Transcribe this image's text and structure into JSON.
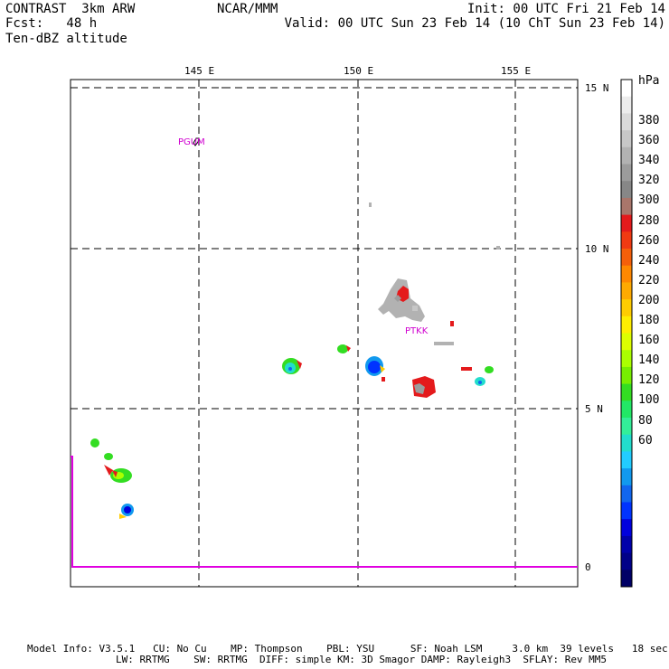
{
  "header": {
    "left_line1": "CONTRAST  3km ARW",
    "left_line2": "Fcst:   48 h",
    "left_line3": "Ten-dBZ altitude",
    "center": "NCAR/MMM",
    "right_line1": "Init: 00 UTC Fri 21 Feb 14",
    "right_line2": "Valid: 00 UTC Sun 23 Feb 14 (10 ChT Sun 23 Feb 14)"
  },
  "map": {
    "lon_labels": [
      "145 E",
      "150 E",
      "155 E"
    ],
    "lat_labels": [
      "15 N",
      "10 N",
      "5 N",
      "0"
    ],
    "stations": [
      {
        "id": "PGUM",
        "label": "PGUM"
      },
      {
        "id": "PTKK",
        "label": "PTKK"
      }
    ]
  },
  "colorbar": {
    "unit": "hPa",
    "labels": [
      "380",
      "360",
      "340",
      "320",
      "300",
      "280",
      "260",
      "240",
      "220",
      "200",
      "180",
      "160",
      "140",
      "120",
      "100",
      "80",
      "60"
    ],
    "colors": [
      "#ffffff",
      "#ececec",
      "#dadada",
      "#c7c7c7",
      "#b2b2b2",
      "#9c9c9c",
      "#878787",
      "#a9766b",
      "#e41a1c",
      "#f03a12",
      "#f55f0a",
      "#ff8800",
      "#ffaa00",
      "#ffcc00",
      "#ffee00",
      "#ddff00",
      "#aaff00",
      "#77ee00",
      "#33dd22",
      "#22e866",
      "#33ee99",
      "#22ddcc",
      "#22ccff",
      "#1199ee",
      "#1166ee",
      "#0033ff",
      "#0000dd",
      "#0000aa",
      "#000088",
      "#000066"
    ]
  },
  "footer": {
    "line1": "Model Info: V3.5.1   CU: No Cu    MP: Thompson    PBL: YSU      SF: Noah LSM     3.0 km  39 levels   18 sec",
    "line2": "LW: RRTMG    SW: RRTMG  DIFF: simple KM: 3D Smagor DAMP: Rayleigh3  SFLAY: Rev MM5"
  }
}
